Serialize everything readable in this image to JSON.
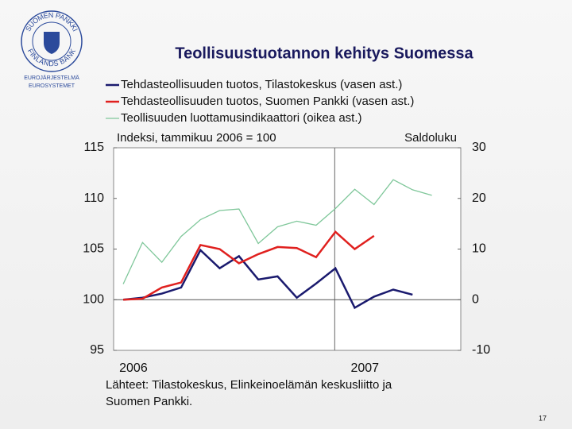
{
  "logo": {
    "ring_top": "SUOMEN PANKKI",
    "ring_bottom": "FINLANDS BANK",
    "line1": "EUROJÄRJESTELMÄ",
    "line2": "EUROSYSTEMET"
  },
  "chart_data": {
    "type": "line",
    "title": "Teollisuustuotannon kehitys Suomessa",
    "ylabel": "Indeksi, tammikuu 2006 = 100",
    "y2label": "Saldoluku",
    "categories": [
      "2006",
      null,
      null,
      null,
      null,
      null,
      null,
      null,
      null,
      null,
      null,
      null,
      "2007",
      null,
      null,
      null,
      null,
      null
    ],
    "ylim": [
      95,
      115
    ],
    "yticks": [
      95,
      100,
      105,
      110,
      115
    ],
    "y2lim": [
      -10,
      30
    ],
    "y2ticks": [
      -10,
      0,
      10,
      20,
      30
    ],
    "hline": 100,
    "series": [
      {
        "name": "Tehdasteollisuuden tuotos, Tilastokeskus (vasen ast.)",
        "color": "#1a1a6e",
        "values": [
          100.0,
          100.2,
          100.6,
          101.2,
          104.9,
          103.1,
          104.3,
          102.0,
          102.3,
          100.2,
          101.6,
          103.1,
          99.2,
          100.3,
          101.0,
          100.5,
          null,
          null
        ]
      },
      {
        "name": "Tehdasteollisuuden tuotos, Suomen Pankki (vasen ast.)",
        "color": "#e0201e",
        "values": [
          100.0,
          100.1,
          101.2,
          101.7,
          105.4,
          105.0,
          103.6,
          104.5,
          105.2,
          105.1,
          104.2,
          106.7,
          105.0,
          106.3,
          null,
          null,
          null,
          null
        ]
      },
      {
        "name": "Teollisuuden luottamusindikaattori (oikea ast.)",
        "color": "#7fc79a",
        "axis": "y2",
        "values": [
          3.1,
          11.3,
          7.4,
          12.5,
          15.8,
          17.6,
          17.9,
          11.1,
          14.4,
          15.5,
          14.7,
          18.0,
          21.8,
          18.8,
          23.7,
          21.7,
          20.6,
          null
        ]
      }
    ]
  },
  "source": [
    "Lähteet: Tilastokeskus, Elinkeinoelämän keskusliitto ja",
    "Suomen Pankki."
  ],
  "page_number": "17"
}
